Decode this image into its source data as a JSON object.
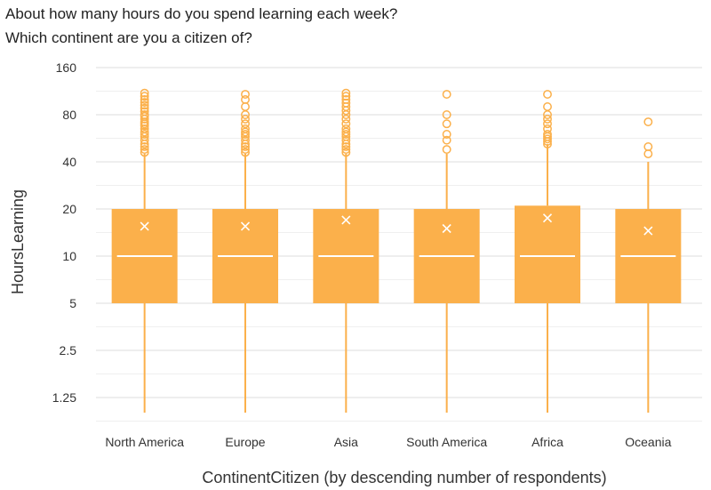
{
  "titles": {
    "line1": "About how many hours do you spend learning each week?",
    "line2": "Which continent are you a citizen of?"
  },
  "chart_data": {
    "type": "boxplot",
    "xlabel": "ContinentCitizen (by descending number of respondents)",
    "ylabel": "HoursLearning",
    "yscale": "log2",
    "ylim": [
      0.9,
      160
    ],
    "yticks": [
      1.25,
      2.5,
      5,
      10,
      20,
      40,
      80,
      160
    ],
    "ytick_labels": [
      "1.25",
      "2.5",
      "5",
      "10",
      "20",
      "40",
      "80",
      "160"
    ],
    "grid": true,
    "box_color": "#FBB04B",
    "median_color": "#ffffff",
    "categories": [
      "North America",
      "Europe",
      "Asia",
      "South America",
      "Africa",
      "Oceania"
    ],
    "boxes": [
      {
        "name": "North America",
        "whisker_low": 0.9,
        "q1": 5,
        "median": 10,
        "q3": 20,
        "whisker_high": 45,
        "mean": 15.5,
        "outliers": [
          46,
          48,
          50,
          52,
          55,
          58,
          60,
          62,
          65,
          68,
          70,
          72,
          75,
          78,
          80,
          84,
          88,
          92,
          96,
          100,
          105,
          110
        ]
      },
      {
        "name": "Europe",
        "whisker_low": 0.9,
        "q1": 5,
        "median": 10,
        "q3": 20,
        "whisker_high": 45,
        "mean": 15.5,
        "outliers": [
          46,
          48,
          50,
          52,
          55,
          58,
          60,
          62,
          65,
          70,
          75,
          80,
          90,
          100,
          108
        ]
      },
      {
        "name": "Asia",
        "whisker_low": 0.9,
        "q1": 5,
        "median": 10,
        "q3": 20,
        "whisker_high": 45,
        "mean": 17,
        "outliers": [
          46,
          48,
          50,
          52,
          55,
          58,
          60,
          62,
          65,
          70,
          75,
          80,
          85,
          90,
          95,
          100,
          105,
          110
        ]
      },
      {
        "name": "South America",
        "whisker_low": 0.9,
        "q1": 5,
        "median": 10,
        "q3": 20,
        "whisker_high": 45,
        "mean": 15,
        "outliers": [
          48,
          55,
          60,
          70,
          80,
          108
        ]
      },
      {
        "name": "Africa",
        "whisker_low": 0.9,
        "q1": 5,
        "median": 10,
        "q3": 21,
        "whisker_high": 52,
        "mean": 17.5,
        "outliers": [
          52,
          54,
          56,
          58,
          60,
          65,
          70,
          75,
          80,
          90,
          108
        ]
      },
      {
        "name": "Oceania",
        "whisker_low": 0.9,
        "q1": 5,
        "median": 10,
        "q3": 20,
        "whisker_high": 40,
        "mean": 14.5,
        "outliers": [
          45,
          50,
          72
        ]
      }
    ]
  }
}
